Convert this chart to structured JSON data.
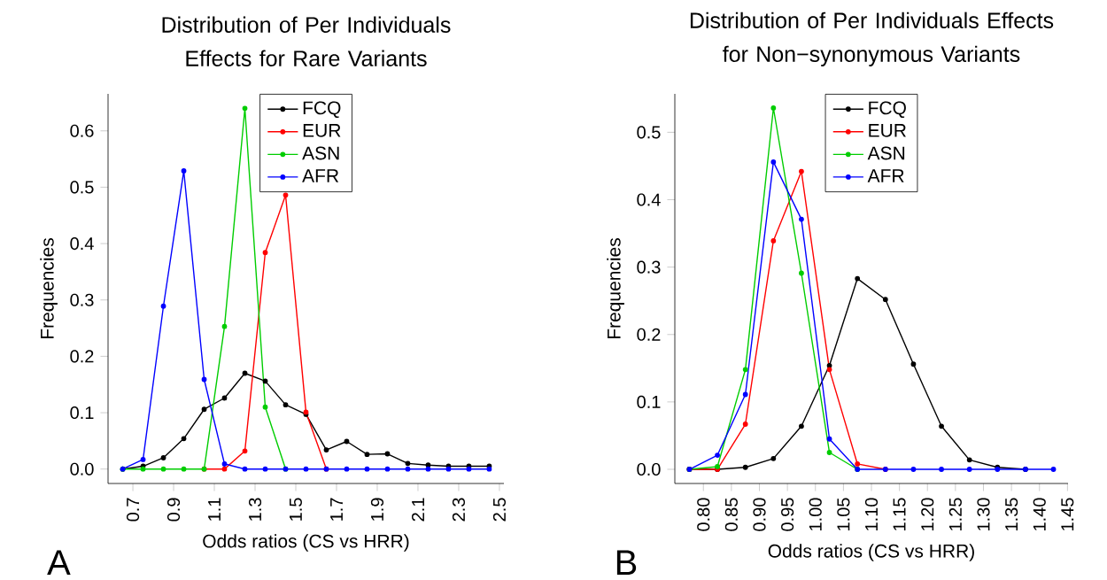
{
  "chart_data": [
    {
      "type": "line",
      "title": "Distribution of Per Individuals Effects for Rare Variants",
      "xlabel": "Odds ratios (CS vs HRR)",
      "ylabel": "Frequencies",
      "annotations": [
        "A"
      ],
      "x": [
        0.65,
        0.75,
        0.85,
        0.95,
        1.05,
        1.15,
        1.25,
        1.35,
        1.45,
        1.55,
        1.65,
        1.75,
        1.85,
        1.95,
        2.05,
        2.15,
        2.25,
        2.35,
        2.45
      ],
      "series": [
        {
          "name": "FCQ",
          "color": "#000000",
          "values": [
            0,
            0.005,
            0.02,
            0.054,
            0.106,
            0.126,
            0.17,
            0.156,
            0.114,
            0.097,
            0.034,
            0.049,
            0.026,
            0.027,
            0.01,
            0.007,
            0.005,
            0.005,
            0.005
          ]
        },
        {
          "name": "EUR",
          "color": "#ff0000",
          "values": [
            null,
            null,
            null,
            null,
            0,
            0,
            0.032,
            0.384,
            0.486,
            0.101,
            0,
            null,
            null,
            null,
            null,
            null,
            null,
            null,
            null
          ]
        },
        {
          "name": "ASN",
          "color": "#00cd00",
          "values": [
            0,
            0,
            0,
            0,
            0,
            0.253,
            0.64,
            0.11,
            0,
            null,
            null,
            null,
            null,
            null,
            null,
            null,
            null,
            null,
            null
          ]
        },
        {
          "name": "AFR",
          "color": "#0000ff",
          "values": [
            0,
            0.017,
            0.289,
            0.529,
            0.159,
            0.009,
            0,
            0,
            0,
            0,
            0,
            0,
            0,
            0,
            0,
            0,
            0,
            0,
            0
          ]
        }
      ],
      "xlim": [
        0.578,
        2.522
      ],
      "ylim": [
        -0.0256,
        0.6656
      ],
      "xticks": [
        0.7,
        0.9,
        1.1,
        1.3,
        1.5,
        1.7,
        1.9,
        2.1,
        2.3,
        2.5
      ],
      "yticks": [
        {
          "value": 0,
          "label": "0.0"
        },
        0.1,
        0.2,
        0.3,
        0.4,
        0.5,
        0.6
      ],
      "legend": "top",
      "marker": "circle",
      "line_style": "solid",
      "grid": false
    },
    {
      "type": "line",
      "title": "Distribution of Per Individuals Effects for Non−synonymous Variants",
      "xlabel": "Odds ratios (CS vs HRR)",
      "ylabel": "Frequencies",
      "annotations": [
        "B"
      ],
      "x": [
        0.775,
        0.825,
        0.875,
        0.925,
        0.975,
        1.025,
        1.075,
        1.125,
        1.175,
        1.225,
        1.275,
        1.325,
        1.375,
        1.425
      ],
      "series": [
        {
          "name": "FCQ",
          "color": "#000000",
          "values": [
            0,
            0,
            0.003,
            0.016,
            0.064,
            0.154,
            0.283,
            0.252,
            0.156,
            0.064,
            0.014,
            0.003,
            0,
            null
          ]
        },
        {
          "name": "EUR",
          "color": "#ff0000",
          "values": [
            0,
            0,
            0.067,
            0.339,
            0.442,
            0.148,
            0.008,
            0,
            null,
            null,
            null,
            null,
            null,
            null
          ]
        },
        {
          "name": "ASN",
          "color": "#00cd00",
          "values": [
            0,
            0.004,
            0.148,
            0.536,
            0.291,
            0.025,
            0,
            null,
            null,
            null,
            null,
            null,
            null,
            null
          ]
        },
        {
          "name": "AFR",
          "color": "#0000ff",
          "values": [
            0,
            0.021,
            0.111,
            0.456,
            0.371,
            0.045,
            0,
            0,
            0,
            0,
            0,
            0,
            0,
            0
          ]
        }
      ],
      "xlim": [
        0.749,
        1.451
      ],
      "ylim": [
        -0.021,
        0.557
      ],
      "xticks": [
        {
          "value": 0.8,
          "label": "0.80"
        },
        {
          "value": 0.85,
          "label": "0.85"
        },
        {
          "value": 0.9,
          "label": "0.90"
        },
        {
          "value": 0.95,
          "label": "0.95"
        },
        {
          "value": 1.0,
          "label": "1.00"
        },
        {
          "value": 1.05,
          "label": "1.05"
        },
        {
          "value": 1.1,
          "label": "1.10"
        },
        {
          "value": 1.15,
          "label": "1.15"
        },
        {
          "value": 1.2,
          "label": "1.20"
        },
        {
          "value": 1.25,
          "label": "1.25"
        },
        {
          "value": 1.3,
          "label": "1.30"
        },
        {
          "value": 1.35,
          "label": "1.35"
        },
        {
          "value": 1.4,
          "label": "1.40"
        },
        {
          "value": 1.45,
          "label": "1.45"
        }
      ],
      "yticks": [
        {
          "value": 0,
          "label": "0.0"
        },
        0.1,
        0.2,
        0.3,
        0.4,
        0.5
      ],
      "legend": "top",
      "marker": "circle",
      "line_style": "solid",
      "grid": false
    }
  ]
}
